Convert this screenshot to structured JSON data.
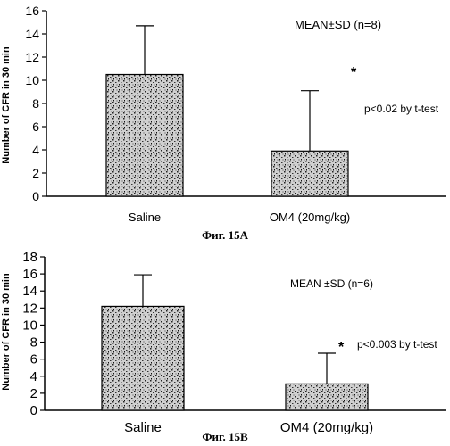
{
  "chart_data": [
    {
      "type": "bar",
      "categories": [
        "Saline",
        "OM4 (20mg/kg)"
      ],
      "values": [
        10.5,
        3.9
      ],
      "errors": [
        4.2,
        5.2
      ],
      "ylabel": "Number of CFR in 30 min",
      "ylim": [
        0,
        16
      ],
      "yticks": [
        "0",
        "2",
        "4",
        "6",
        "8",
        "10",
        "12",
        "14",
        "16"
      ],
      "annotation_stats": "MEAN±SD (n=8)",
      "annotation_sig": "p<0.02 by t-test",
      "significance_mark": "*",
      "caption": "Фиг. 15А",
      "grid": false,
      "bar_color": "#777777"
    },
    {
      "type": "bar",
      "categories": [
        "Saline",
        "OM4 (20mg/kg)"
      ],
      "values": [
        12.2,
        3.1
      ],
      "errors": [
        3.7,
        3.6
      ],
      "ylabel": "Number of CFR in 30 min",
      "ylim": [
        0,
        18
      ],
      "yticks": [
        "0",
        "2",
        "4",
        "6",
        "8",
        "10",
        "12",
        "14",
        "16",
        "18"
      ],
      "annotation_stats": "MEAN ±SD (n=6)",
      "annotation_sig": "p<0.003 by t-test",
      "significance_mark": "*",
      "caption": "Фиг. 15В",
      "grid": false,
      "bar_color": "#777777"
    }
  ]
}
